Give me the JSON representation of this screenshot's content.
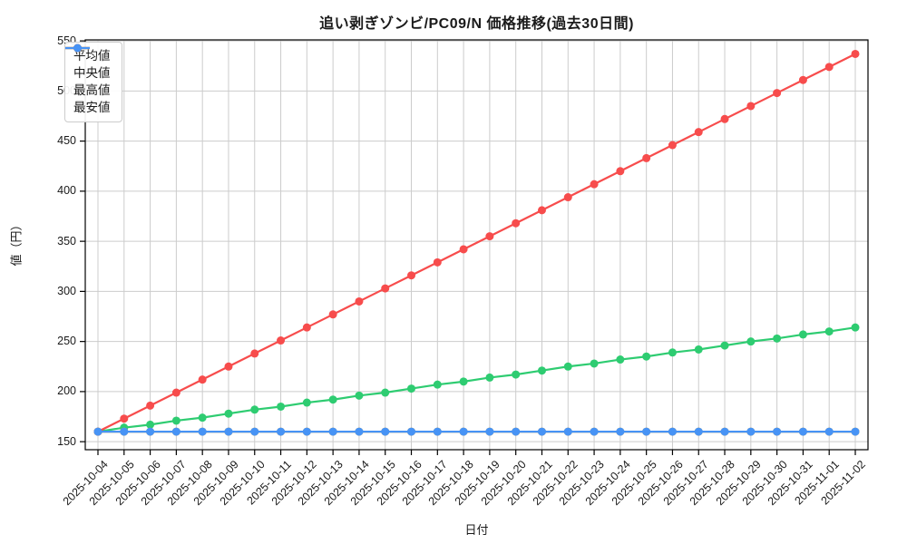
{
  "chart_data": {
    "type": "line",
    "title": "追い剥ぎゾンビ/PC09/N 価格推移(過去30日間)",
    "xlabel": "日付",
    "ylabel": "値（円）",
    "grid": true,
    "legend_position": "upper-left",
    "ylim": [
      142,
      551
    ],
    "yticks": [
      150,
      200,
      250,
      300,
      350,
      400,
      450,
      500,
      550
    ],
    "x": [
      "2025-10-04",
      "2025-10-05",
      "2025-10-06",
      "2025-10-07",
      "2025-10-08",
      "2025-10-09",
      "2025-10-10",
      "2025-10-11",
      "2025-10-12",
      "2025-10-13",
      "2025-10-14",
      "2025-10-15",
      "2025-10-16",
      "2025-10-17",
      "2025-10-18",
      "2025-10-19",
      "2025-10-20",
      "2025-10-21",
      "2025-10-22",
      "2025-10-23",
      "2025-10-24",
      "2025-10-25",
      "2025-10-26",
      "2025-10-27",
      "2025-10-28",
      "2025-10-29",
      "2025-10-30",
      "2025-10-31",
      "2025-11-01",
      "2025-11-02"
    ],
    "series": [
      {
        "name": "平均値",
        "color": "#2ecc71",
        "values": [
          160,
          164,
          167,
          171,
          174,
          178,
          182,
          185,
          189,
          192,
          196,
          199,
          203,
          207,
          210,
          214,
          217,
          221,
          225,
          228,
          232,
          235,
          239,
          242,
          246,
          250,
          253,
          257,
          260,
          264
        ]
      },
      {
        "name": "中央値",
        "color": "#ffa502",
        "values": [
          160,
          160,
          160,
          160,
          160,
          160,
          160,
          160,
          160,
          160,
          160,
          160,
          160,
          160,
          160,
          160,
          160,
          160,
          160,
          160,
          160,
          160,
          160,
          160,
          160,
          160,
          160,
          160,
          160,
          160
        ]
      },
      {
        "name": "最高値",
        "color": "#f74c4c",
        "values": [
          160,
          173,
          186,
          199,
          212,
          225,
          238,
          251,
          264,
          277,
          290,
          303,
          316,
          329,
          342,
          355,
          368,
          381,
          394,
          407,
          420,
          433,
          446,
          459,
          472,
          485,
          498,
          511,
          524,
          537
        ]
      },
      {
        "name": "最安値",
        "color": "#4793f5",
        "values": [
          160,
          160,
          160,
          160,
          160,
          160,
          160,
          160,
          160,
          160,
          160,
          160,
          160,
          160,
          160,
          160,
          160,
          160,
          160,
          160,
          160,
          160,
          160,
          160,
          160,
          160,
          160,
          160,
          160,
          160
        ]
      }
    ],
    "colors": {
      "grid": "#cccccc",
      "spine": "#000000",
      "text": "#1a1a1a",
      "background": "#ffffff"
    }
  }
}
